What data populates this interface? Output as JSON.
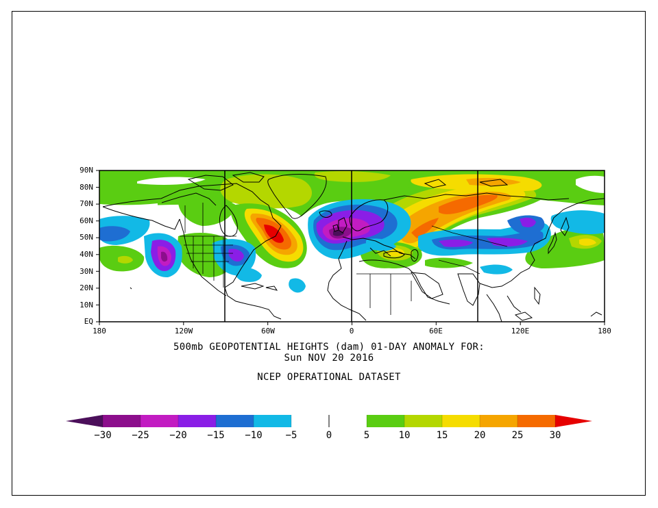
{
  "map": {
    "title_line1": "500mb GEOPOTENTIAL HEIGHTS (dam)   01-DAY ANOMALY FOR:",
    "title_line2": "Sun NOV 20 2016",
    "dataset": "NCEP OPERATIONAL DATASET",
    "lat_labels": [
      "90N",
      "80N",
      "70N",
      "60N",
      "50N",
      "40N",
      "30N",
      "20N",
      "10N",
      "EQ"
    ],
    "lon_labels": [
      "180",
      "120W",
      "60W",
      "0",
      "60E",
      "120E",
      "180"
    ],
    "colorbar": {
      "labels": [
        "-30",
        "-25",
        "-20",
        "-15",
        "-10",
        "-5",
        "0",
        "5",
        "10",
        "15",
        "20",
        "25",
        "30"
      ],
      "colors": [
        "#4b0f5a",
        "#8c0e8c",
        "#c21cc2",
        "#8a1ee6",
        "#1e6ed2",
        "#12b9e6",
        "#ffffff",
        "#ffffff",
        "#5acd12",
        "#b4d700",
        "#f5dc00",
        "#f5a500",
        "#f56a00",
        "#e60000"
      ]
    },
    "palette": {
      "neg30": "#4b0f5a",
      "neg25": "#8c0e8c",
      "neg20": "#c21cc2",
      "neg15": "#8a1ee6",
      "neg10": "#1e6ed2",
      "neg5": "#12b9e6",
      "pos5": "#5acd12",
      "pos10": "#b4d700",
      "pos15": "#f5dc00",
      "pos20": "#f5a500",
      "pos25": "#f56a00",
      "pos30": "#e60000"
    }
  },
  "chart_data": {
    "type": "heatmap",
    "title": "500mb GEOPOTENTIAL HEIGHTS (dam)   01-DAY ANOMALY FOR: Sun NOV 20 2016",
    "subtitle": "NCEP OPERATIONAL DATASET",
    "x_range_lon": [
      -180,
      180
    ],
    "y_range_lat": [
      0,
      90
    ],
    "units": "dam",
    "contour_levels": [
      -30,
      -25,
      -20,
      -15,
      -10,
      -5,
      0,
      5,
      10,
      15,
      20,
      25,
      30
    ],
    "features": [
      {
        "name": "negative anomaly NE Atlantic / W Europe",
        "lon": -12,
        "lat": 52,
        "peak": -25
      },
      {
        "name": "negative anomaly NE Pacific",
        "lon": -137,
        "lat": 40,
        "peak": -20
      },
      {
        "name": "negative anomaly NE United States",
        "lon": -75,
        "lat": 40,
        "peak": -15
      },
      {
        "name": "negative anomaly Central Asia",
        "lon": 108,
        "lat": 48,
        "peak": -15
      },
      {
        "name": "negative anomaly NE Asia",
        "lon": 130,
        "lat": 58,
        "peak": -15
      },
      {
        "name": "positive anomaly Labrador Sea",
        "lon": -52,
        "lat": 54,
        "peak": 30
      },
      {
        "name": "positive anomaly Russia / Scandinavia band",
        "lon": 50,
        "lat": 62,
        "peak": 25
      },
      {
        "name": "positive anomaly Arctic Siberia",
        "lon": 70,
        "lat": 80,
        "peak": 20
      },
      {
        "name": "positive anomaly Black Sea region",
        "lon": 25,
        "lat": 42,
        "peak": 15
      },
      {
        "name": "positive anomaly Western Pacific",
        "lon": 150,
        "lat": 42,
        "peak": 10
      }
    ]
  }
}
